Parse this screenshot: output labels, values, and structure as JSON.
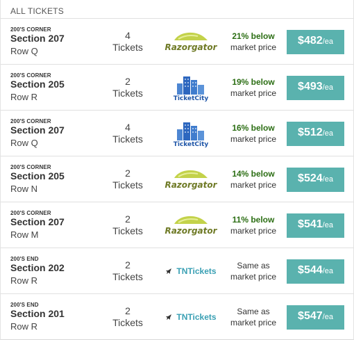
{
  "header": {
    "title": "ALL TICKETS"
  },
  "price_suffix": "/ea",
  "colors": {
    "price_button": "#5ab2ae",
    "savings_green": "#2c6e14"
  },
  "listings": [
    {
      "zone": "200'S CORNER",
      "section": "Section 207",
      "row": "Row Q",
      "qty": "4",
      "qty_label": "Tickets",
      "vendor": "Razorgator",
      "savings": "21% below",
      "savings_suffix": "market price",
      "price": "$482"
    },
    {
      "zone": "200'S CORNER",
      "section": "Section 205",
      "row": "Row R",
      "qty": "2",
      "qty_label": "Tickets",
      "vendor": "TicketCity",
      "savings": "19% below",
      "savings_suffix": "market price",
      "price": "$493"
    },
    {
      "zone": "200'S CORNER",
      "section": "Section 207",
      "row": "Row Q",
      "qty": "4",
      "qty_label": "Tickets",
      "vendor": "TicketCity",
      "savings": "16% below",
      "savings_suffix": "market price",
      "price": "$512"
    },
    {
      "zone": "200'S CORNER",
      "section": "Section 205",
      "row": "Row N",
      "qty": "2",
      "qty_label": "Tickets",
      "vendor": "Razorgator",
      "savings": "14% below",
      "savings_suffix": "market price",
      "price": "$524"
    },
    {
      "zone": "200'S CORNER",
      "section": "Section 207",
      "row": "Row M",
      "qty": "2",
      "qty_label": "Tickets",
      "vendor": "Razorgator",
      "savings": "11% below",
      "savings_suffix": "market price",
      "price": "$541"
    },
    {
      "zone": "200'S END",
      "section": "Section 202",
      "row": "Row R",
      "qty": "2",
      "qty_label": "Tickets",
      "vendor": "TNTickets",
      "savings": "Same as",
      "savings_suffix": "market price",
      "price": "$544"
    },
    {
      "zone": "200'S END",
      "section": "Section 201",
      "row": "Row R",
      "qty": "2",
      "qty_label": "Tickets",
      "vendor": "TNTickets",
      "savings": "Same as",
      "savings_suffix": "market price",
      "price": "$547"
    }
  ]
}
